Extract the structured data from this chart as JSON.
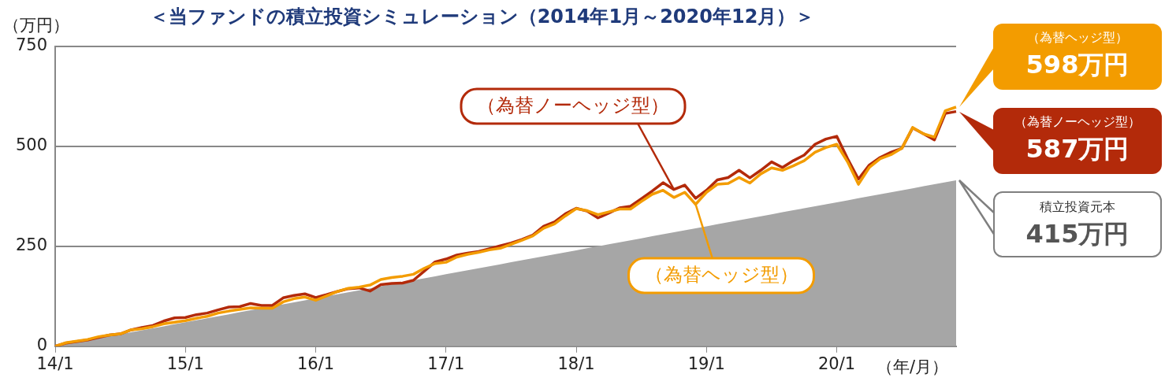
{
  "chart_data": {
    "type": "line",
    "title": "＜当ファンドの積立投資シミュレーション（2014年1月～2020年12月）＞",
    "ylabel": "（万円）",
    "xlabel": "（年/月）",
    "categories": [
      "14/1",
      null,
      null,
      null,
      null,
      null,
      null,
      null,
      null,
      null,
      null,
      null,
      "15/1",
      null,
      null,
      null,
      null,
      null,
      null,
      null,
      null,
      null,
      null,
      null,
      "16/1",
      null,
      null,
      null,
      null,
      null,
      null,
      null,
      null,
      null,
      null,
      null,
      "17/1",
      null,
      null,
      null,
      null,
      null,
      null,
      null,
      null,
      null,
      null,
      null,
      "18/1",
      null,
      null,
      null,
      null,
      null,
      null,
      null,
      null,
      null,
      null,
      null,
      "19/1",
      null,
      null,
      null,
      null,
      null,
      null,
      null,
      null,
      null,
      null,
      null,
      "20/1",
      null,
      null,
      null,
      null,
      null,
      null,
      null,
      null,
      null,
      null,
      null
    ],
    "series": [
      {
        "name": "（為替ヘッジ型）",
        "type": "line",
        "color": "#f39c00",
        "values": [
          0,
          9,
          13,
          17,
          24,
          28,
          31,
          41,
          44,
          49,
          56,
          60,
          64,
          70,
          75,
          83,
          88,
          92,
          96,
          95,
          95,
          111,
          119,
          123,
          115,
          126,
          137,
          145,
          148,
          153,
          167,
          172,
          175,
          180,
          195,
          207,
          210,
          223,
          230,
          235,
          241,
          245,
          255,
          265,
          276,
          295,
          306,
          326,
          344,
          339,
          329,
          336,
          343,
          343,
          362,
          380,
          390,
          372,
          385,
          355,
          385,
          405,
          407,
          422,
          408,
          431,
          446,
          440,
          451,
          464,
          485,
          497,
          505,
          461,
          405,
          447,
          469,
          479,
          495,
          547,
          531,
          523,
          589,
          598
        ]
      },
      {
        "name": "（為替ノーヘッジ型）",
        "type": "line",
        "color": "#b32a0a",
        "values": [
          0,
          8,
          12,
          16,
          22,
          28,
          31,
          41,
          47,
          52,
          63,
          71,
          72,
          79,
          83,
          91,
          98,
          99,
          107,
          102,
          102,
          121,
          127,
          131,
          122,
          129,
          137,
          144,
          146,
          138,
          154,
          157,
          158,
          165,
          188,
          211,
          218,
          228,
          233,
          237,
          244,
          251,
          258,
          267,
          278,
          300,
          311,
          331,
          345,
          338,
          321,
          333,
          346,
          350,
          369,
          388,
          409,
          392,
          403,
          370,
          390,
          416,
          422,
          440,
          421,
          440,
          461,
          447,
          464,
          478,
          505,
          518,
          525,
          469,
          418,
          453,
          472,
          485,
          495,
          546,
          531,
          516,
          582,
          587
        ]
      },
      {
        "name": "積立投資元本",
        "type": "area",
        "color": "#a6a6a6",
        "values": [
          0,
          5,
          10,
          15,
          20,
          25,
          30,
          35,
          40,
          45,
          50,
          55,
          60,
          65,
          70,
          75,
          80,
          85,
          90,
          95,
          100,
          105,
          110,
          115,
          120,
          125,
          130,
          135,
          140,
          145,
          150,
          155,
          160,
          165,
          170,
          175,
          180,
          185,
          190,
          195,
          200,
          205,
          210,
          215,
          220,
          225,
          230,
          235,
          240,
          245,
          250,
          255,
          260,
          265,
          270,
          275,
          280,
          285,
          290,
          295,
          300,
          305,
          310,
          315,
          320,
          325,
          330,
          335,
          340,
          345,
          350,
          355,
          360,
          365,
          370,
          375,
          380,
          385,
          390,
          395,
          400,
          405,
          410,
          415
        ]
      }
    ],
    "annotations": [
      "598万円",
      "587万円",
      "415万円"
    ],
    "ylim": [
      0,
      750
    ],
    "yticks": [
      0,
      250,
      500,
      750
    ],
    "grid": "y",
    "legend": false,
    "marker": "none",
    "line_style": "solid"
  }
}
